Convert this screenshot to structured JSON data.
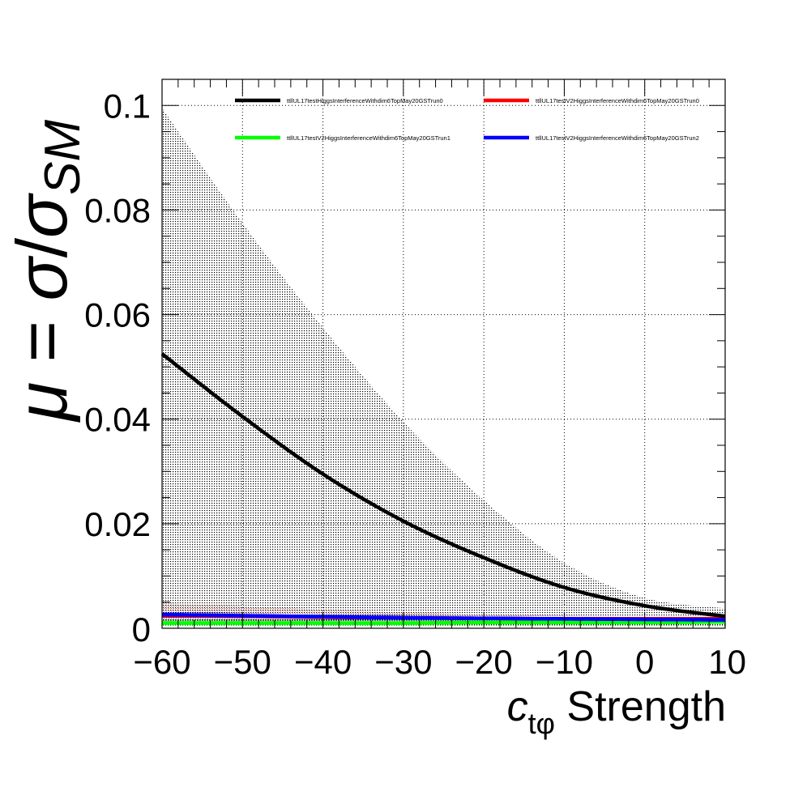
{
  "chart_data": {
    "type": "line",
    "ylabel": "μ = σ/σ_SM",
    "ylabel_parts": {
      "mu": "μ",
      "eq": " = ",
      "sigma": "σ",
      "slash": "/",
      "sigma2": "σ",
      "sub": "SM"
    },
    "xlabel": "c_tφ Strength",
    "xlabel_parts": {
      "c": "c",
      "sub": "tφ",
      "rest": " Strength"
    },
    "xlim": [
      -60,
      10
    ],
    "ylim": [
      0,
      0.105
    ],
    "xticks": [
      -60,
      -50,
      -40,
      -30,
      -20,
      -10,
      0,
      10
    ],
    "xtick_labels": [
      "−60",
      "−50",
      "−40",
      "−30",
      "−20",
      "−10",
      "0",
      "10"
    ],
    "yticks": [
      0,
      0.02,
      0.04,
      0.06,
      0.08,
      0.1
    ],
    "ytick_labels": [
      "0",
      "0.02",
      "0.04",
      "0.06",
      "0.08",
      "0.1"
    ],
    "grid": true,
    "legend_position": "top",
    "series": [
      {
        "name": "ttllUL17testHiggsInterferenceWithdim6TopMay20GSTrun0",
        "color": "#000000",
        "x": [
          -60,
          -50,
          -40,
          -30,
          -20,
          -10,
          0,
          10
        ],
        "values": [
          0.0525,
          0.0405,
          0.0295,
          0.0205,
          0.0135,
          0.0078,
          0.0043,
          0.0023
        ],
        "band_upper": [
          0.0995,
          0.0775,
          0.0575,
          0.0395,
          0.0245,
          0.0125,
          0.0058,
          0.0038
        ],
        "band_lower": [
          0.0005,
          0.0005,
          0.0005,
          0.0005,
          0.0005,
          0.0005,
          0.0005,
          0.0005
        ]
      },
      {
        "name": "ttllUL17testV2HiggsInterferenceWithdim6TopMay20GSTrun0",
        "color": "#ff0000",
        "x": [
          -60,
          -50,
          -40,
          -30,
          -20,
          -10,
          0,
          10
        ],
        "values": [
          0.0024,
          0.0023,
          0.0021,
          0.002,
          0.0019,
          0.0018,
          0.0018,
          0.0018
        ],
        "band_upper": [
          0.0048,
          0.0042,
          0.0036,
          0.0031,
          0.0027,
          0.0024,
          0.0022,
          0.0021
        ],
        "band_lower": [
          0.001,
          0.001,
          0.001,
          0.001,
          0.001,
          0.001,
          0.001,
          0.001
        ]
      },
      {
        "name": "ttllUL17testV2HiggsInterferenceWithdim6TopMay20GSTrun1",
        "color": "#00ff00",
        "x": [
          -60,
          -50,
          -40,
          -30,
          -20,
          -10,
          0,
          10
        ],
        "values": [
          0.001,
          0.001,
          0.001,
          0.001,
          0.0011,
          0.0011,
          0.0011,
          0.0012
        ],
        "band_upper": [
          0.0016,
          0.0016,
          0.0016,
          0.0016,
          0.0016,
          0.0016,
          0.0016,
          0.0016
        ],
        "band_lower": [
          0.0004,
          0.0004,
          0.0004,
          0.0004,
          0.0004,
          0.0004,
          0.0004,
          0.0004
        ]
      },
      {
        "name": "ttllUL17testV2HiggsInterferenceWithdim6TopMay20GSTrun2",
        "color": "#0000ff",
        "x": [
          -60,
          -50,
          -40,
          -30,
          -20,
          -10,
          0,
          10
        ],
        "values": [
          0.0026,
          0.0024,
          0.0022,
          0.002,
          0.0019,
          0.0018,
          0.0017,
          0.0016
        ],
        "band_upper": [
          0.0033,
          0.003,
          0.0028,
          0.0026,
          0.0024,
          0.0023,
          0.0022,
          0.0021
        ],
        "band_lower": [
          0.0016,
          0.0015,
          0.0014,
          0.0013,
          0.0012,
          0.0012,
          0.0011,
          0.0011
        ]
      }
    ]
  }
}
